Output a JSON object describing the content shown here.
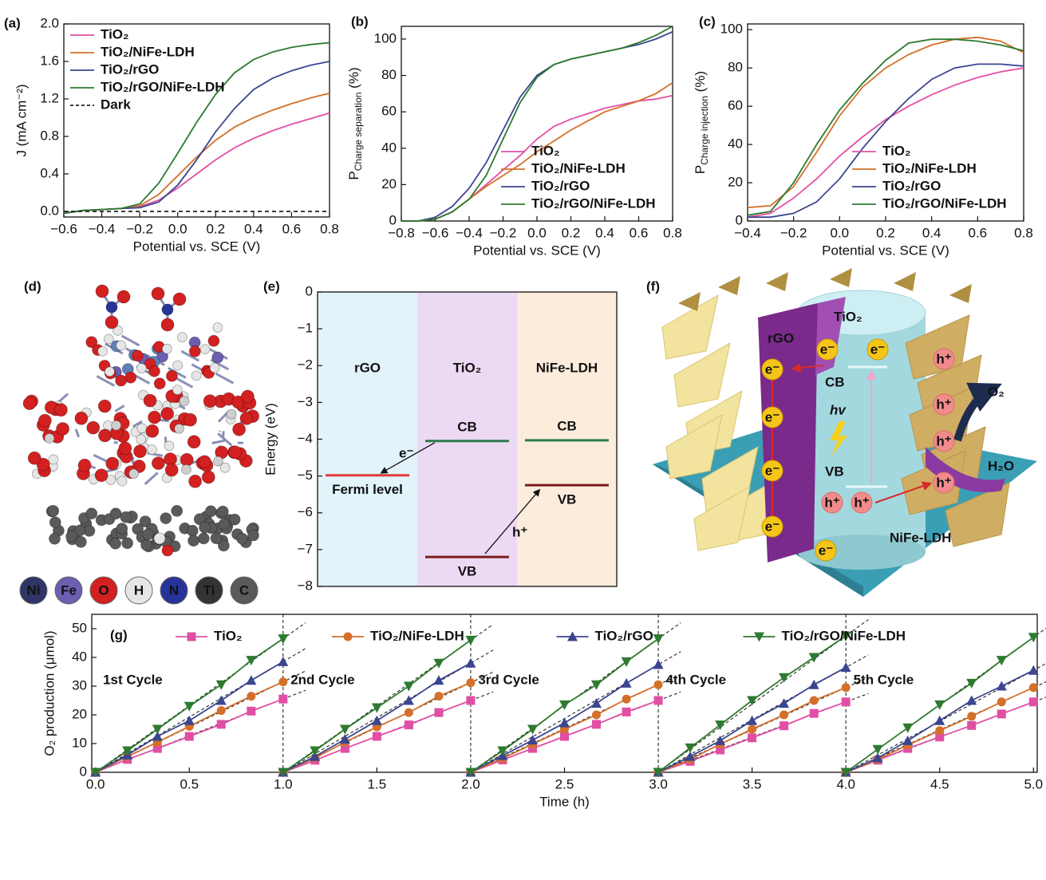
{
  "chart_data": [
    {
      "type": "line",
      "panel": "(a)",
      "x_label": "Potential vs. SCE (V)",
      "y_label": "J (mA cm⁻²)",
      "x": [
        -0.6,
        -0.5,
        -0.4,
        -0.3,
        -0.2,
        -0.1,
        0,
        0.1,
        0.2,
        0.3,
        0.4,
        0.5,
        0.6,
        0.7,
        0.8
      ],
      "xlim": [
        -0.6,
        0.8
      ],
      "ylim": [
        -0.06,
        2.0
      ],
      "xticks": [
        {
          "value": -0.6,
          "label": "−0.6"
        },
        {
          "value": -0.4,
          "label": "−0.4"
        },
        {
          "value": -0.2,
          "label": "−0.2"
        },
        {
          "value": 0,
          "label": "0.0"
        },
        0.2,
        0.4,
        0.6,
        0.8
      ],
      "yticks": [
        {
          "value": 0,
          "label": "0.0"
        },
        0.4,
        0.8,
        1.2,
        1.6,
        {
          "value": 2,
          "label": "2.0"
        }
      ],
      "legend": "upper left",
      "series": [
        {
          "name": "TiO₂",
          "color": "#e34fa5",
          "values": [
            -0.02,
            0.01,
            0.02,
            0.03,
            0.05,
            0.12,
            0.25,
            0.4,
            0.55,
            0.68,
            0.78,
            0.86,
            0.93,
            0.99,
            1.05
          ]
        },
        {
          "name": "TiO₂/NiFe-LDH",
          "color": "#d4702a",
          "values": [
            -0.02,
            0.01,
            0.02,
            0.03,
            0.06,
            0.18,
            0.38,
            0.58,
            0.76,
            0.9,
            1.0,
            1.08,
            1.15,
            1.21,
            1.26
          ]
        },
        {
          "name": "TiO₂/rGO",
          "color": "#3b4590",
          "values": [
            -0.02,
            0.01,
            0.02,
            0.03,
            0.04,
            0.1,
            0.28,
            0.55,
            0.85,
            1.1,
            1.3,
            1.42,
            1.5,
            1.56,
            1.6
          ]
        },
        {
          "name": "TiO₂/rGO/NiFe-LDH",
          "color": "#2e7a30",
          "values": [
            -0.02,
            0.01,
            0.02,
            0.03,
            0.08,
            0.3,
            0.62,
            0.95,
            1.25,
            1.48,
            1.62,
            1.7,
            1.75,
            1.78,
            1.8
          ]
        },
        {
          "name": "Dark",
          "color": "#222222",
          "dash": true,
          "values": [
            0,
            0,
            0,
            0,
            0,
            0,
            0,
            0,
            0,
            0,
            0,
            0,
            0,
            0,
            0
          ]
        }
      ]
    },
    {
      "type": "line",
      "panel": "(b)",
      "x_label": "Potential vs. SCE (V)",
      "y_label": [
        "P",
        "Charge separation",
        " (%)"
      ],
      "x": [
        -0.8,
        -0.7,
        -0.6,
        -0.5,
        -0.4,
        -0.3,
        -0.2,
        -0.1,
        0,
        0.1,
        0.2,
        0.3,
        0.4,
        0.5,
        0.6,
        0.7,
        0.8
      ],
      "xlim": [
        -0.8,
        0.8
      ],
      "ylim": [
        0,
        107
      ],
      "xticks": [
        {
          "value": -0.8,
          "label": "−0.8"
        },
        {
          "value": -0.6,
          "label": "−0.6"
        },
        {
          "value": -0.4,
          "label": "−0.4"
        },
        {
          "value": -0.2,
          "label": "−0.2"
        },
        {
          "value": 0,
          "label": "0.0"
        },
        0.2,
        0.4,
        0.6,
        0.8
      ],
      "yticks": [
        0,
        20,
        40,
        60,
        80,
        100
      ],
      "legend": "lower right",
      "series": [
        {
          "name": "TiO₂",
          "color": "#e34fa5",
          "values": [
            0,
            0,
            1,
            5,
            12,
            20,
            28,
            36,
            45,
            52,
            56,
            59,
            62,
            64,
            66,
            67,
            69
          ]
        },
        {
          "name": "TiO₂/NiFe-LDH",
          "color": "#d4702a",
          "values": [
            0,
            0,
            1,
            5,
            12,
            19,
            25,
            31,
            38,
            44,
            50,
            55,
            60,
            63,
            66,
            70,
            76
          ]
        },
        {
          "name": "TiO₂/rGO",
          "color": "#3b4590",
          "values": [
            0,
            0,
            2,
            8,
            18,
            32,
            50,
            68,
            80,
            86,
            89,
            91,
            93,
            95,
            97,
            100,
            104
          ]
        },
        {
          "name": "TiO₂/rGO/NiFe-LDH",
          "color": "#2e7a30",
          "values": [
            0,
            0,
            1,
            5,
            12,
            25,
            45,
            65,
            79,
            86,
            89,
            91,
            93,
            95,
            98,
            102,
            107
          ]
        }
      ]
    },
    {
      "type": "line",
      "panel": "(c)",
      "x_label": "Potential vs. SCE (V)",
      "y_label": [
        "P",
        "Charge injection",
        " (%)"
      ],
      "x": [
        -0.4,
        -0.3,
        -0.2,
        -0.1,
        0,
        0.1,
        0.2,
        0.3,
        0.4,
        0.5,
        0.6,
        0.7,
        0.8
      ],
      "xlim": [
        -0.4,
        0.8
      ],
      "ylim": [
        0,
        103
      ],
      "xticks": [
        {
          "value": -0.4,
          "label": "−0.4"
        },
        {
          "value": -0.2,
          "label": "−0.2"
        },
        {
          "value": 0,
          "label": "0.0"
        },
        0.2,
        0.4,
        0.6,
        0.8
      ],
      "yticks": [
        0,
        20,
        40,
        60,
        80,
        100
      ],
      "legend": "lower right",
      "series": [
        {
          "name": "TiO₂",
          "color": "#e34fa5",
          "values": [
            2,
            4,
            12,
            22,
            34,
            44,
            53,
            60,
            66,
            71,
            75,
            78,
            80
          ]
        },
        {
          "name": "TiO₂/NiFe-LDH",
          "color": "#d4702a",
          "values": [
            7,
            8,
            18,
            36,
            55,
            70,
            80,
            87,
            92,
            95,
            96,
            94,
            88
          ]
        },
        {
          "name": "TiO₂/rGO",
          "color": "#3b4590",
          "values": [
            2,
            2,
            4,
            10,
            22,
            38,
            52,
            64,
            74,
            80,
            82,
            82,
            81
          ]
        },
        {
          "name": "TiO₂/rGO/NiFe-LDH",
          "color": "#2e7a30",
          "values": [
            3,
            5,
            20,
            40,
            58,
            72,
            84,
            93,
            95,
            95,
            94,
            92,
            89
          ]
        }
      ]
    },
    {
      "type": "energy_levels",
      "panel": "(e)",
      "y_label": "Energy (eV)",
      "ylim": [
        -8,
        0
      ],
      "yticks": [
        0,
        {
          "value": -1,
          "label": "−1"
        },
        {
          "value": -2,
          "label": "−2"
        },
        {
          "value": -3,
          "label": "−3"
        },
        {
          "value": -4,
          "label": "−4"
        },
        {
          "value": -5,
          "label": "−5"
        },
        {
          "value": -6,
          "label": "−6"
        },
        {
          "value": -7,
          "label": "−7"
        },
        {
          "value": -8,
          "label": "−8"
        }
      ],
      "columns": [
        {
          "name": "rGO",
          "color": "#e2f3f9"
        },
        {
          "name": "TiO₂",
          "color": "#ecd9f3"
        },
        {
          "name": "NiFe-LDH",
          "color": "#fcecdc"
        }
      ],
      "levels": [
        {
          "column": 0,
          "energy": -4.98,
          "label": "Fermi level",
          "color": "#e03a3a"
        },
        {
          "column": 1,
          "energy": -4.05,
          "label": "CB",
          "color": "#2e7a4e"
        },
        {
          "column": 1,
          "energy": -7.2,
          "label": "VB",
          "color": "#7a1c1c"
        },
        {
          "column": 2,
          "energy": -4.03,
          "label": "CB",
          "color": "#2e7a4e"
        },
        {
          "column": 2,
          "energy": -5.25,
          "label": "VB",
          "color": "#7a1c1c"
        }
      ],
      "electron_label": "e⁻",
      "hole_label": "h⁺"
    },
    {
      "type": "line",
      "panel": "(g)",
      "x_label": "Time (h)",
      "y_label": "O₂ production (μmol)",
      "x": [
        0,
        0.17,
        0.33,
        0.5,
        0.67,
        0.83,
        1,
        1,
        1.17,
        1.33,
        1.5,
        1.67,
        1.83,
        2,
        2,
        2.17,
        2.33,
        2.5,
        2.67,
        2.83,
        3,
        3,
        3.17,
        3.33,
        3.5,
        3.67,
        3.83,
        4,
        4,
        4.17,
        4.33,
        4.5,
        4.67,
        4.83,
        5
      ],
      "xlim": [
        -0.02,
        5.02
      ],
      "ylim": [
        0,
        55
      ],
      "xticks": [
        {
          "value": 0,
          "label": "0.0"
        },
        0.5,
        {
          "value": 1,
          "label": "1.0"
        },
        1.5,
        {
          "value": 2,
          "label": "2.0"
        },
        2.5,
        {
          "value": 3,
          "label": "3.0"
        },
        3.5,
        {
          "value": 4,
          "label": "4.0"
        },
        4.5,
        {
          "value": 5,
          "label": "5.0"
        }
      ],
      "yticks": [
        0,
        10,
        20,
        30,
        40,
        50
      ],
      "legend": "top",
      "fit_lines": true,
      "cycle_dividers": true,
      "cycle_labels": [
        "1st Cycle",
        "2nd Cycle",
        "3rd Cycle",
        "4th Cycle",
        "5th Cycle"
      ],
      "series": [
        {
          "name": "TiO₂",
          "color": "#e04fa5",
          "marker": "square",
          "values": [
            0,
            4.5,
            8.3,
            12.5,
            16.7,
            21.3,
            25.5,
            0,
            4.2,
            8.3,
            12.5,
            16.5,
            20.8,
            25,
            0,
            4.3,
            8.3,
            12.5,
            16.7,
            21,
            25,
            0,
            3.8,
            7.8,
            12,
            16.2,
            20.5,
            24.5,
            0,
            4.2,
            8.3,
            12.3,
            16.3,
            20.3,
            24.5
          ]
        },
        {
          "name": "TiO₂/NiFe-LDH",
          "color": "#d4702a",
          "marker": "circle",
          "values": [
            0,
            5.5,
            10.5,
            16,
            21.5,
            26.5,
            31.5,
            0,
            5,
            10.5,
            15.8,
            20.8,
            26.5,
            31.2,
            0,
            4.8,
            9.8,
            15,
            20,
            25.5,
            30.5,
            0,
            4.5,
            9.8,
            15,
            20,
            25,
            29.5,
            0,
            4.5,
            9.5,
            14.5,
            19.5,
            24.5,
            29.5
          ]
        },
        {
          "name": "TiO₂/rGO",
          "color": "#3b4590",
          "marker": "triangle-up",
          "values": [
            0,
            6,
            12.5,
            18,
            25,
            32,
            38.5,
            0,
            5.5,
            11.5,
            18,
            25,
            32,
            38,
            0,
            5.8,
            11.2,
            17.2,
            24,
            31,
            37.5,
            0,
            5.5,
            11,
            18,
            24,
            30.5,
            36.5,
            0,
            5,
            11,
            18,
            25,
            30,
            35.5
          ]
        },
        {
          "name": "TiO₂/rGO/NiFe-LDH",
          "color": "#2e7a30",
          "marker": "triangle-down",
          "values": [
            0,
            7.5,
            15,
            23,
            30.5,
            39,
            46.5,
            0,
            7.5,
            15,
            22.5,
            30,
            38,
            46,
            0,
            7.5,
            15,
            23.5,
            30.5,
            38.5,
            46.5,
            0,
            8.5,
            16.5,
            25,
            33,
            40,
            47.5,
            0,
            8,
            15.5,
            23.5,
            31,
            39,
            47
          ]
        }
      ]
    }
  ],
  "structure_panel": {
    "panel": "(d)",
    "atoms": [
      {
        "symbol": "Ni",
        "color": "#2f3566"
      },
      {
        "symbol": "Fe",
        "color": "#6c5fb0"
      },
      {
        "symbol": "O",
        "color": "#d32020"
      },
      {
        "symbol": "H",
        "color": "#e6e6e6"
      },
      {
        "symbol": "N",
        "color": "#26349a"
      },
      {
        "symbol": "Ti",
        "color": "#333333"
      },
      {
        "symbol": "C",
        "color": "#5a5a5a"
      }
    ]
  },
  "schematic_panel": {
    "panel": "(f)",
    "tio2": "TiO₂",
    "rgo": "rGO",
    "cb": "CB",
    "vb": "VB",
    "hv": "hv",
    "o2": "O₂",
    "h2o": "H₂O",
    "nife": "NiFe-LDH",
    "electron": "e⁻",
    "hole": "h⁺"
  }
}
